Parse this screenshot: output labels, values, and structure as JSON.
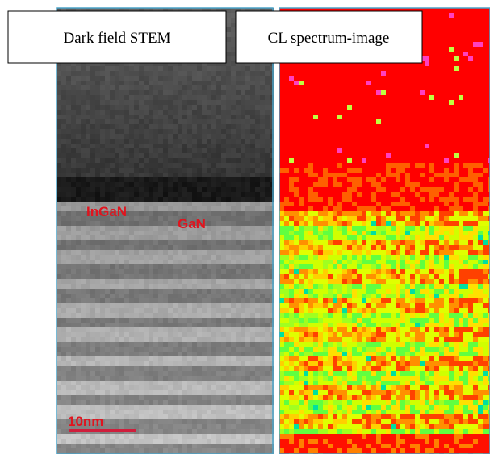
{
  "panels": [
    {
      "label": "Dark field STEM"
    },
    {
      "label": "CL spectrum-image"
    }
  ],
  "annotations": [
    {
      "text": "InGaN"
    },
    {
      "text": "GaN"
    }
  ],
  "scale_bar": {
    "label": "10nm"
  }
}
